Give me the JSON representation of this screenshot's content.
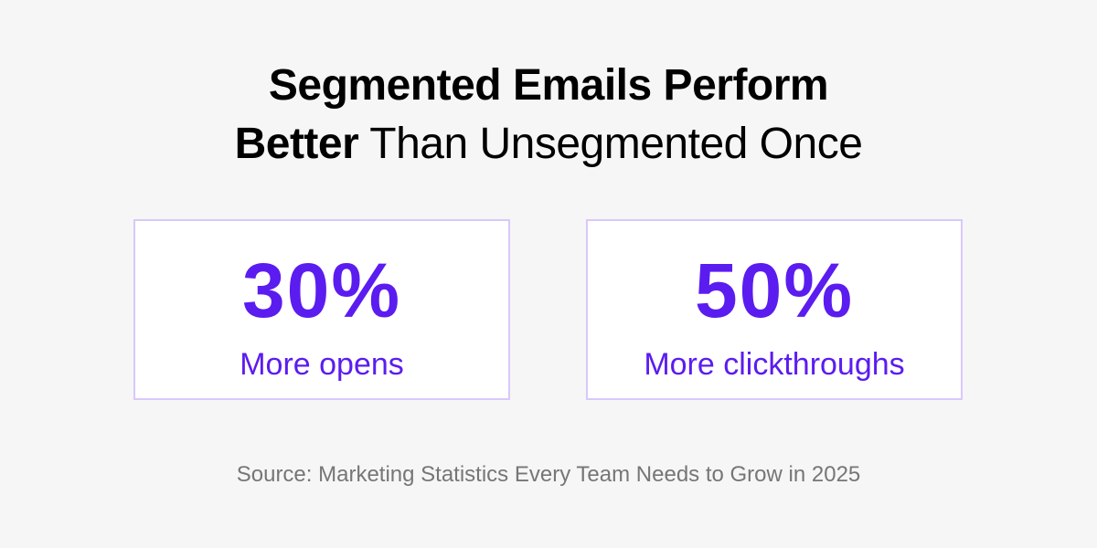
{
  "title": {
    "line1": "Segmented Emails Perform",
    "line2_bold": "Better",
    "line2_rest": " Than Unsegmented Once"
  },
  "stats": [
    {
      "value": "30%",
      "label": "More opens"
    },
    {
      "value": "50%",
      "label": "More clickthroughs"
    }
  ],
  "source": "Source: Marketing Statistics Every Team Needs to Grow in 2025",
  "colors": {
    "background": "#f6f6f6",
    "accent": "#5b1cf0",
    "card_border": "#d9c8fb",
    "source_text": "#767676"
  }
}
